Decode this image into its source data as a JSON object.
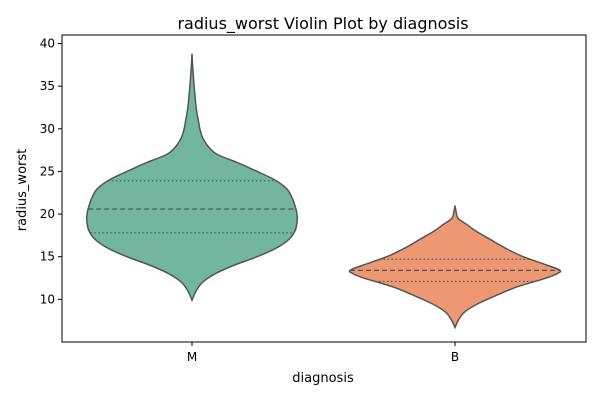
{
  "chart_data": {
    "type": "violin",
    "title": "radius_worst Violin Plot by diagnosis",
    "xlabel": "diagnosis",
    "ylabel": "radius_worst",
    "ylim": [
      5,
      41
    ],
    "yticks": [
      10,
      15,
      20,
      25,
      30,
      35,
      40
    ],
    "grid": false,
    "categories": [
      "M",
      "B"
    ],
    "colors": {
      "M": "#72b6a0",
      "B": "#ee9773",
      "outline": "#555555"
    },
    "violins": [
      {
        "category": "M",
        "min": 9.9,
        "max": 38.8,
        "q1": 17.8,
        "median": 20.6,
        "q3": 23.9,
        "density_profile": [
          [
            9.9,
            0.0
          ],
          [
            11,
            0.04
          ],
          [
            12,
            0.1
          ],
          [
            13,
            0.22
          ],
          [
            14,
            0.4
          ],
          [
            15,
            0.62
          ],
          [
            16,
            0.8
          ],
          [
            17,
            0.92
          ],
          [
            18,
            0.98
          ],
          [
            19,
            1.0
          ],
          [
            20,
            1.0
          ],
          [
            21,
            0.98
          ],
          [
            22,
            0.95
          ],
          [
            23,
            0.9
          ],
          [
            24,
            0.79
          ],
          [
            25,
            0.62
          ],
          [
            26,
            0.44
          ],
          [
            27,
            0.24
          ],
          [
            28,
            0.15
          ],
          [
            29,
            0.1
          ],
          [
            30,
            0.075
          ],
          [
            31,
            0.06
          ],
          [
            32,
            0.045
          ],
          [
            33,
            0.035
          ],
          [
            34,
            0.028
          ],
          [
            35,
            0.02
          ],
          [
            36,
            0.014
          ],
          [
            37,
            0.008
          ],
          [
            38,
            0.003
          ],
          [
            38.8,
            0.0
          ]
        ]
      },
      {
        "category": "B",
        "min": 6.7,
        "max": 21.0,
        "q1": 12.1,
        "median": 13.4,
        "q3": 14.7,
        "density_profile": [
          [
            6.7,
            0.0
          ],
          [
            7.5,
            0.03
          ],
          [
            8.5,
            0.09
          ],
          [
            9.5,
            0.22
          ],
          [
            10.5,
            0.4
          ],
          [
            11.5,
            0.6
          ],
          [
            12.5,
            0.87
          ],
          [
            13.0,
            0.97
          ],
          [
            13.4,
            1.0
          ],
          [
            14.0,
            0.88
          ],
          [
            15.0,
            0.65
          ],
          [
            16.0,
            0.48
          ],
          [
            17.0,
            0.34
          ],
          [
            18.0,
            0.2
          ],
          [
            18.8,
            0.11
          ],
          [
            19.5,
            0.03
          ],
          [
            20.3,
            0.01
          ],
          [
            21.0,
            0.0
          ]
        ]
      }
    ]
  }
}
